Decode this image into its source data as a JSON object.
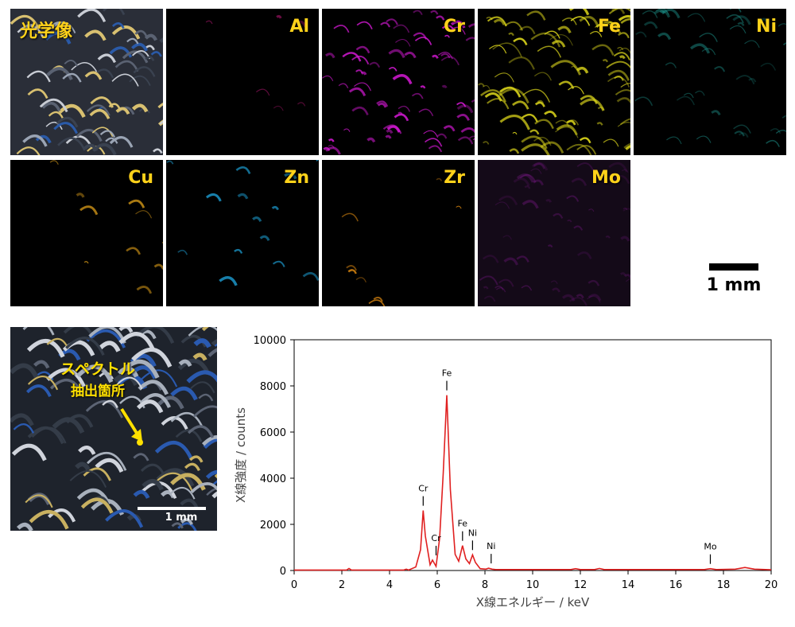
{
  "tiles": [
    {
      "id": "optical",
      "label": "光学像",
      "color": "#8a9ab0",
      "kind": "optical"
    },
    {
      "id": "al",
      "label": "Al",
      "color": "#c0187a",
      "kind": "map"
    },
    {
      "id": "cr",
      "label": "Cr",
      "color": "#d418d4",
      "kind": "map"
    },
    {
      "id": "fe",
      "label": "Fe",
      "color": "#d8d21a",
      "kind": "map"
    },
    {
      "id": "ni",
      "label": "Ni",
      "color": "#1e9a92",
      "kind": "map"
    },
    {
      "id": "cu",
      "label": "Cu",
      "color": "#e0a018",
      "kind": "map"
    },
    {
      "id": "zn",
      "label": "Zn",
      "color": "#1ea8e0",
      "kind": "map"
    },
    {
      "id": "zr",
      "label": "Zr",
      "color": "#e08a10",
      "kind": "map"
    },
    {
      "id": "mo",
      "label": "Mo",
      "color": "#8a1a9a",
      "kind": "map"
    }
  ],
  "scale_bar_top": {
    "label": "1 mm"
  },
  "photo": {
    "callout_line1": "スペクトル",
    "callout_line2": "抽出箇所",
    "scale_label": "1 mm"
  },
  "chart_data": {
    "type": "line",
    "xlabel": "X線エネルギー / keV",
    "ylabel": "X線強度 / counts",
    "xlim": [
      0,
      20
    ],
    "ylim": [
      0,
      10000
    ],
    "xticks": [
      0,
      2,
      4,
      6,
      8,
      10,
      12,
      14,
      16,
      18,
      20
    ],
    "yticks": [
      0,
      2000,
      4000,
      6000,
      8000,
      10000
    ],
    "grid": false,
    "line_color": "#e02020",
    "x": [
      0,
      2.2,
      2.3,
      2.4,
      4.6,
      4.7,
      4.8,
      5.1,
      5.3,
      5.41,
      5.5,
      5.7,
      5.8,
      5.95,
      6.1,
      6.25,
      6.4,
      6.55,
      6.75,
      6.9,
      7.06,
      7.2,
      7.35,
      7.48,
      7.6,
      7.8,
      8.04,
      8.15,
      8.3,
      8.45,
      11.6,
      11.8,
      12.0,
      12.6,
      12.8,
      13.0,
      17.2,
      17.45,
      17.7,
      18.5,
      18.9,
      19.3,
      20
    ],
    "y": [
      20,
      20,
      90,
      20,
      20,
      60,
      20,
      150,
      900,
      2600,
      1500,
      250,
      450,
      180,
      1400,
      4200,
      7600,
      3500,
      700,
      400,
      1080,
      500,
      300,
      680,
      350,
      80,
      60,
      100,
      60,
      40,
      40,
      80,
      40,
      40,
      90,
      40,
      40,
      80,
      40,
      60,
      130,
      60,
      30
    ],
    "annotations": [
      {
        "text": "Cr",
        "x": 5.41,
        "y": 2600
      },
      {
        "text": "Cr",
        "x": 5.95,
        "y": 450
      },
      {
        "text": "Fe",
        "x": 6.4,
        "y": 7600
      },
      {
        "text": "Fe",
        "x": 7.06,
        "y": 1080
      },
      {
        "text": "Ni",
        "x": 7.48,
        "y": 680
      },
      {
        "text": "Ni",
        "x": 8.26,
        "y": 100
      },
      {
        "text": "Mo",
        "x": 17.45,
        "y": 80
      }
    ]
  }
}
